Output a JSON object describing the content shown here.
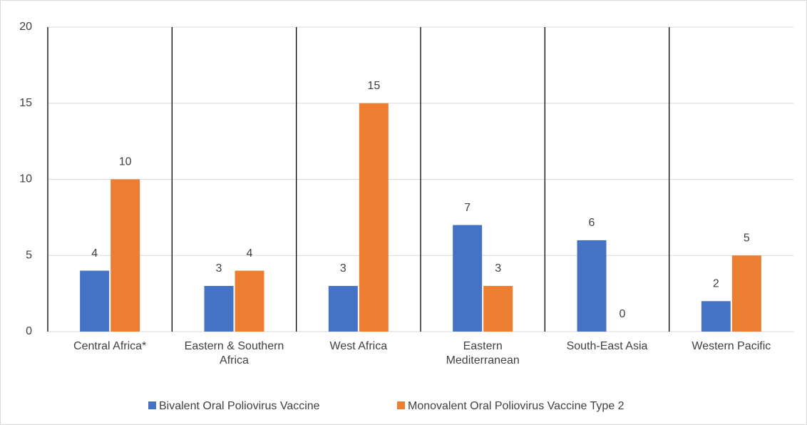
{
  "chart_data": {
    "type": "bar",
    "categories": [
      "Central Africa*",
      "Eastern & Southern Africa",
      "West Africa",
      "Eastern Mediterranean",
      "South-East Asia",
      "Western Pacific"
    ],
    "series": [
      {
        "name": "Bivalent Oral Poliovirus Vaccine",
        "color": "#4472c4",
        "values": [
          4,
          3,
          3,
          7,
          6,
          2
        ]
      },
      {
        "name": "Monovalent Oral Poliovirus Vaccine Type 2",
        "color": "#ed7d31",
        "values": [
          10,
          4,
          15,
          3,
          0,
          5
        ]
      }
    ],
    "ylim": [
      0,
      20
    ],
    "yticks": [
      0,
      5,
      10,
      15,
      20
    ],
    "grid": true,
    "legend": "bottom"
  }
}
